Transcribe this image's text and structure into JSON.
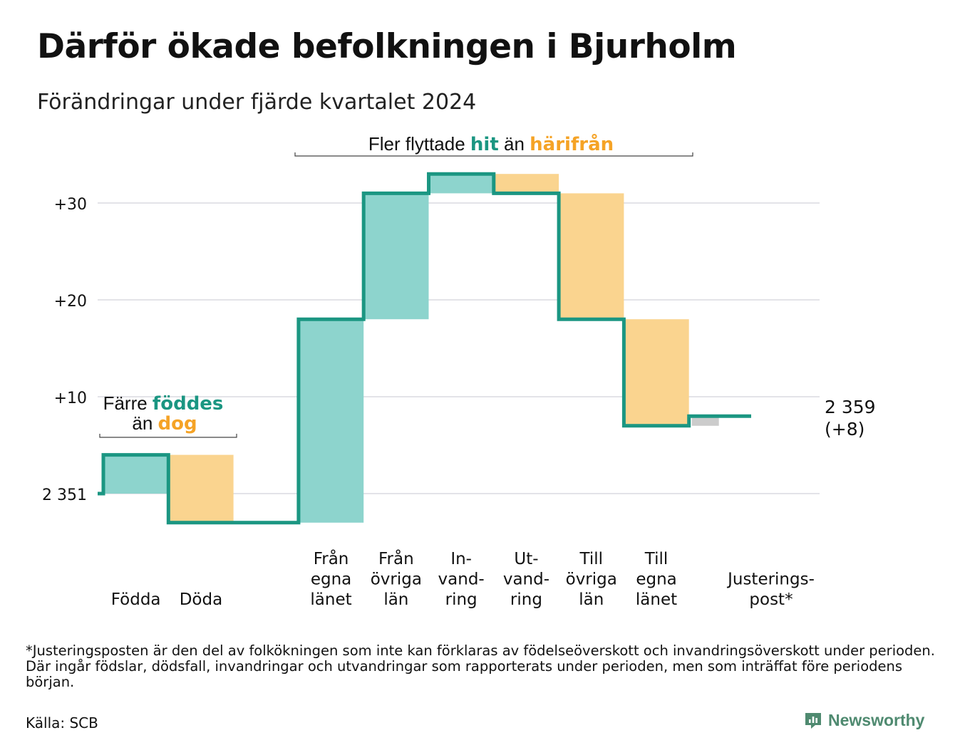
{
  "title": "Därför ökade befolkningen i Bjurholm",
  "subtitle": "Förändringar under fjärde kvartalet 2024",
  "footnote": "*Justeringsposten är den del av folkökningen som inte kan förklaras av födelseöverskott och invandringsöverskott under perioden. Där ingår födslar, dödsfall, invandringar och utvandringar som rapporterats under perioden, men som inträffat före periodens början.",
  "source": "Källa: SCB",
  "brand": {
    "name": "Newsworthy",
    "icon": "newsworthy-logo-icon",
    "color": "#4f8a70"
  },
  "colors": {
    "increase": "#8dd4cd",
    "decrease": "#fad48f",
    "adjustment": "#cccccc",
    "line": "#1b9682",
    "teal_text": "#1b9682",
    "orange_text": "#f5a326",
    "grid": "#e3e3e8"
  },
  "chart_data": {
    "type": "waterfall",
    "start_value": 2351,
    "end_value": 2359,
    "end_label": "2 359",
    "end_change_label": "(+8)",
    "start_label": "2 351",
    "ytick_labels": [
      "2 351",
      "+10",
      "+20",
      "+30"
    ],
    "yticks": [
      0,
      10,
      20,
      30
    ],
    "ylim": [
      -3.5,
      33
    ],
    "steps": [
      {
        "label": [
          "Födda"
        ],
        "change": 4,
        "kind": "increase"
      },
      {
        "label": [
          "Döda"
        ],
        "change": -7,
        "kind": "decrease"
      },
      {
        "label": [],
        "change": 0,
        "kind": "gap"
      },
      {
        "label": [
          "Från",
          "egna",
          "länet"
        ],
        "change": 21,
        "kind": "increase"
      },
      {
        "label": [
          "Från",
          "övriga",
          "län"
        ],
        "change": 13,
        "kind": "increase"
      },
      {
        "label": [
          "In-",
          "vand-",
          "ring"
        ],
        "change": 2,
        "kind": "increase"
      },
      {
        "label": [
          "Ut-",
          "vand-",
          "ring"
        ],
        "change": -2,
        "kind": "decrease"
      },
      {
        "label": [
          "Till",
          "övriga",
          "län"
        ],
        "change": -13,
        "kind": "decrease"
      },
      {
        "label": [
          "Till",
          "egna",
          "länet"
        ],
        "change": -11,
        "kind": "decrease"
      },
      {
        "label": [
          "Justerings-",
          "post*"
        ],
        "change": 1,
        "kind": "adjustment"
      }
    ],
    "annotations": [
      {
        "id": "births-deaths",
        "parts": [
          {
            "text": "Färre ",
            "style": "plain"
          },
          {
            "text": "föddes",
            "style": "teal"
          }
        ],
        "parts2": [
          {
            "text": "än ",
            "style": "plain"
          },
          {
            "text": "dog",
            "style": "orange"
          }
        ]
      },
      {
        "id": "migration",
        "parts": [
          {
            "text": "Fler flyttade ",
            "style": "plain"
          },
          {
            "text": "hit",
            "style": "teal"
          },
          {
            "text": " än ",
            "style": "plain"
          },
          {
            "text": "härifrån",
            "style": "orange"
          }
        ]
      }
    ]
  }
}
